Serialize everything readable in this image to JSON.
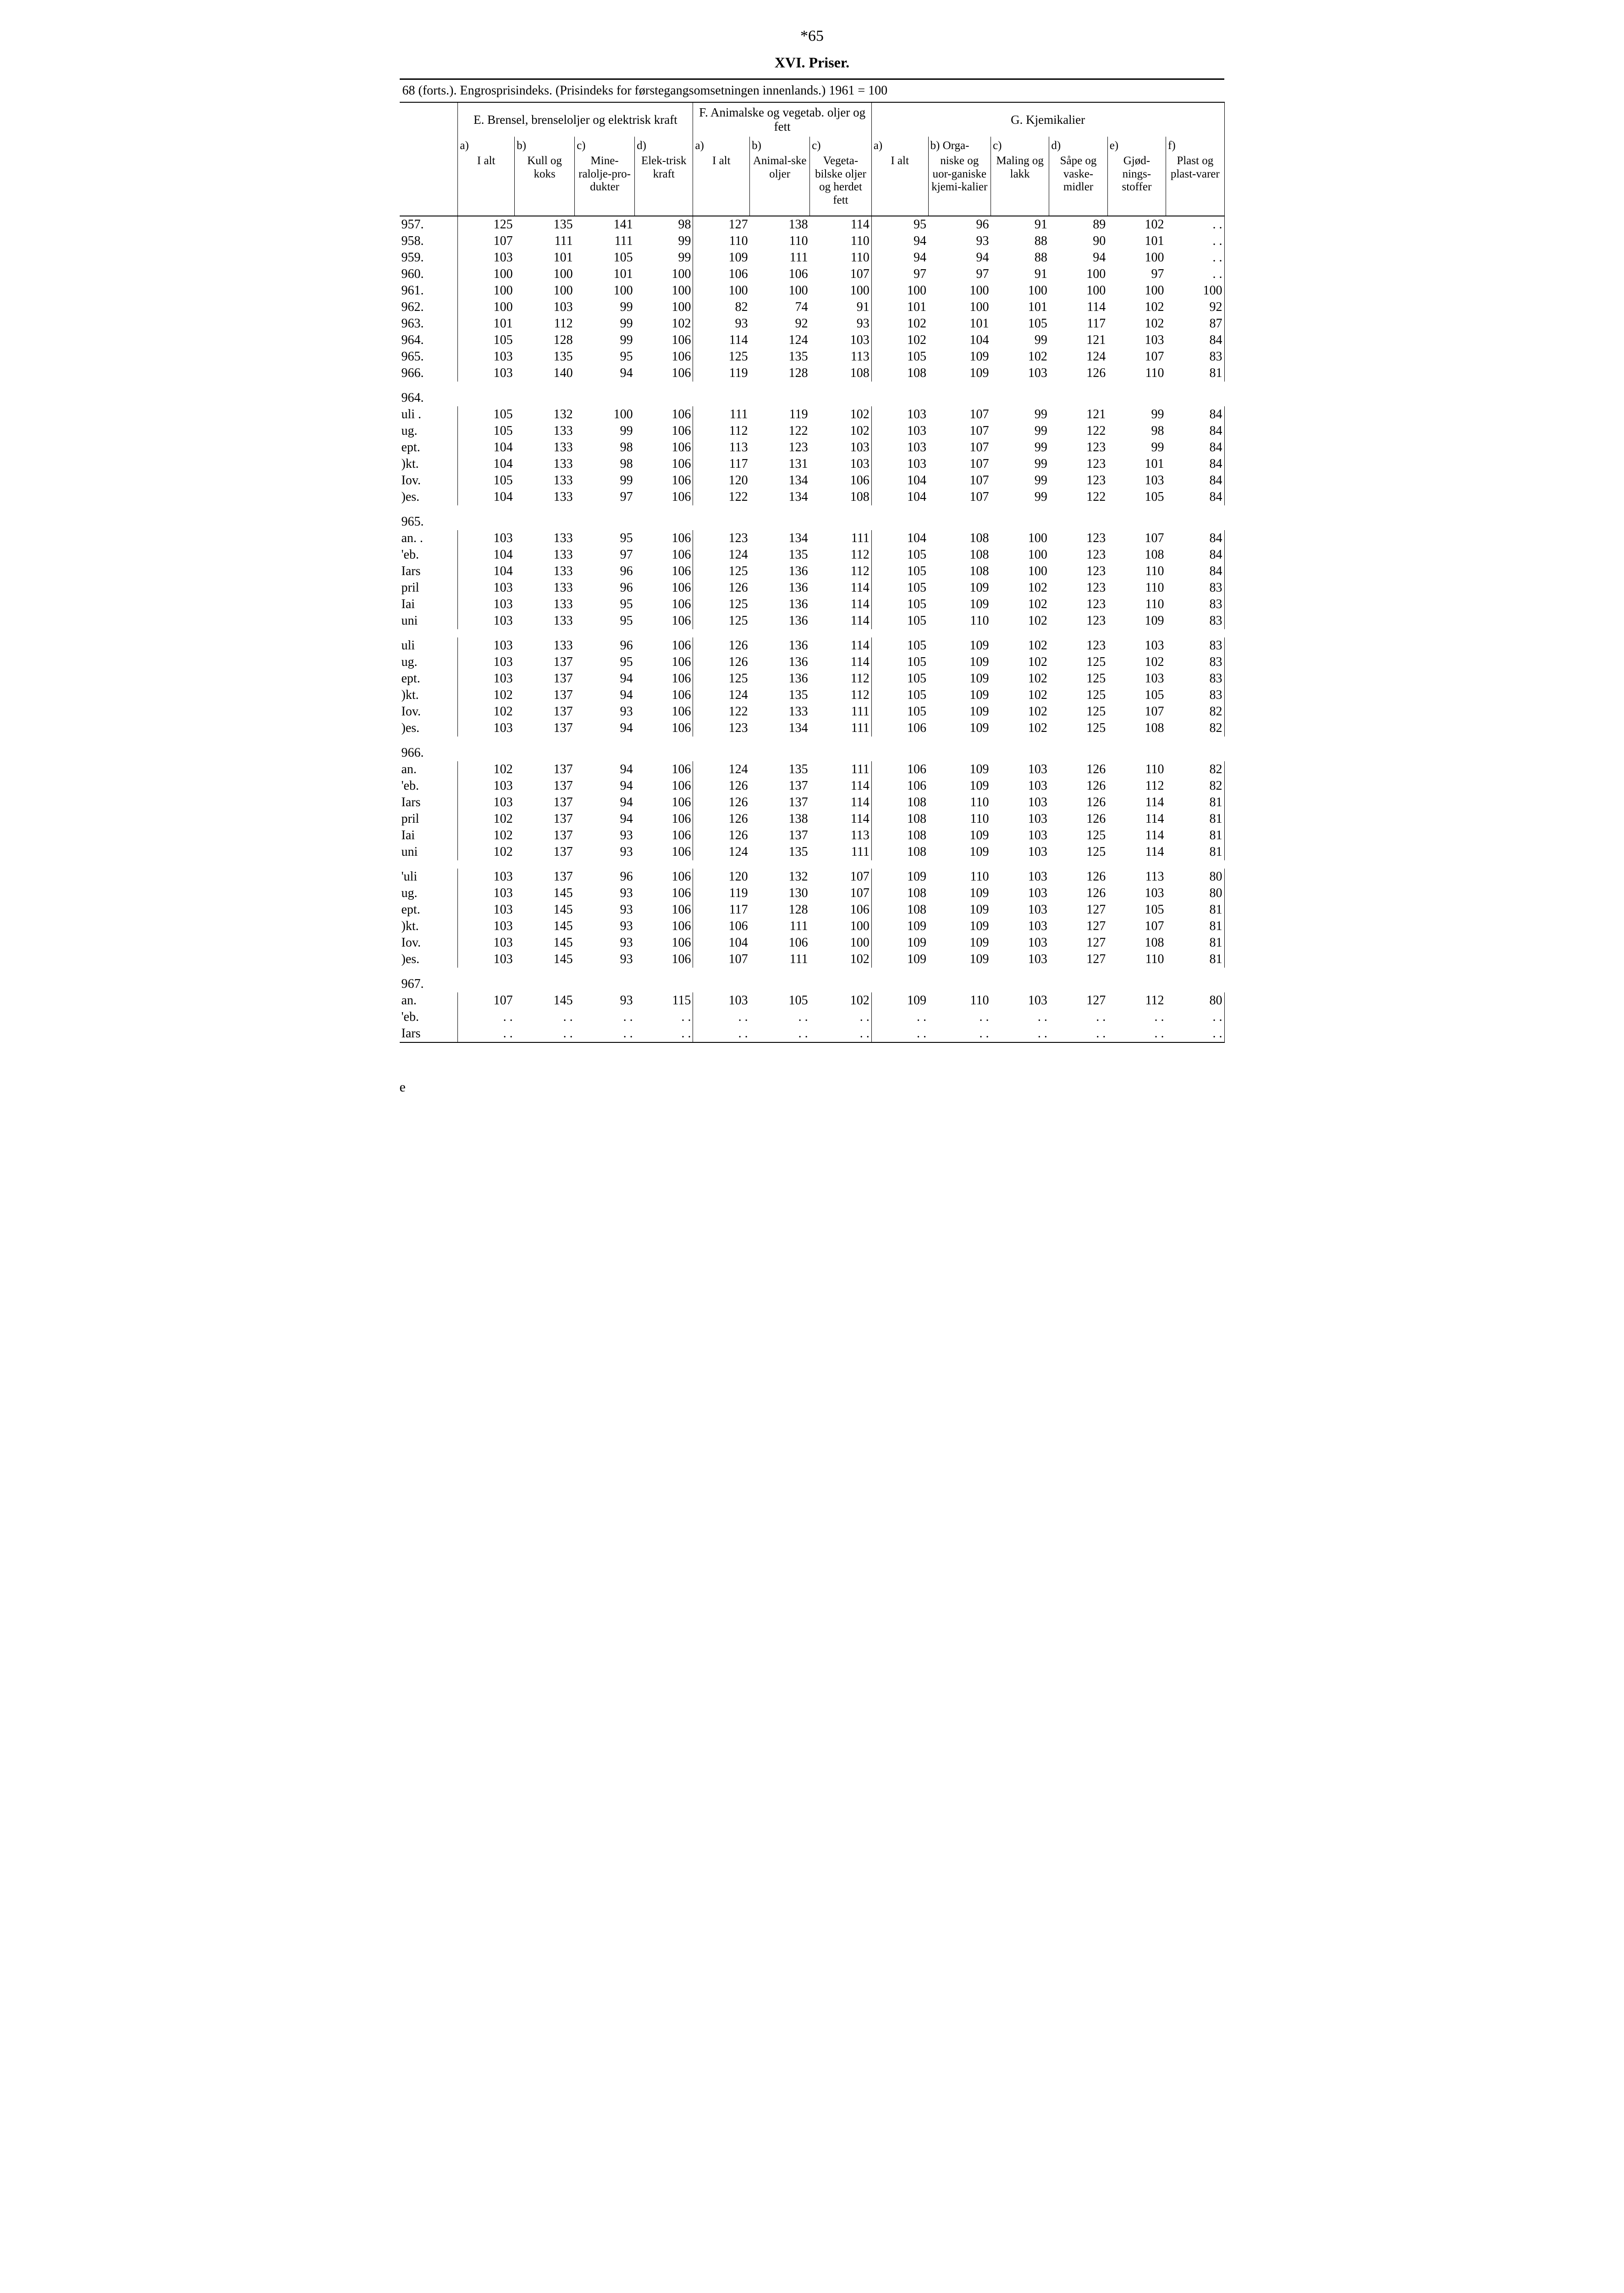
{
  "page_number": "*65",
  "title": "XVI. Priser.",
  "caption": "68 (forts.). Engrosprisindeks. (Prisindeks for førstegangsomsetningen innenlands.) 1961 = 100",
  "groups": [
    {
      "label": "E. Brensel, brenseloljer og elektrisk kraft",
      "span": 4
    },
    {
      "label": "F. Animalske og vegetab. oljer og fett",
      "span": 3
    },
    {
      "label": "G. Kjemikalier",
      "span": 6
    }
  ],
  "columns": [
    {
      "letter": "a)",
      "label": "I alt"
    },
    {
      "letter": "b)",
      "label": "Kull og koks"
    },
    {
      "letter": "c)",
      "label": "Mine-ralolje-pro-dukter"
    },
    {
      "letter": "d)",
      "label": "Elek-trisk kraft"
    },
    {
      "letter": "a)",
      "label": "I alt"
    },
    {
      "letter": "b)",
      "label": "Animal-ske oljer"
    },
    {
      "letter": "c)",
      "label": "Vegeta-bilske oljer og herdet fett"
    },
    {
      "letter": "a)",
      "label": "I alt"
    },
    {
      "letter": "b) Orga-",
      "label": "niske og uor-ganiske kjemi-kalier"
    },
    {
      "letter": "c)",
      "label": "Maling og lakk"
    },
    {
      "letter": "d)",
      "label": "Såpe og vaske-midler"
    },
    {
      "letter": "e)",
      "label": "Gjød-nings-stoffer"
    },
    {
      "letter": "f)",
      "label": "Plast og plast-varer"
    }
  ],
  "sections": [
    {
      "header": null,
      "rows": [
        {
          "label": "957.",
          "v": [
            "125",
            "135",
            "141",
            "98",
            "127",
            "138",
            "114",
            "95",
            "96",
            "91",
            "89",
            "102",
            ". ."
          ]
        },
        {
          "label": "958.",
          "v": [
            "107",
            "111",
            "111",
            "99",
            "110",
            "110",
            "110",
            "94",
            "93",
            "88",
            "90",
            "101",
            ". ."
          ]
        },
        {
          "label": "959.",
          "v": [
            "103",
            "101",
            "105",
            "99",
            "109",
            "111",
            "110",
            "94",
            "94",
            "88",
            "94",
            "100",
            ". ."
          ]
        },
        {
          "label": "960.",
          "v": [
            "100",
            "100",
            "101",
            "100",
            "106",
            "106",
            "107",
            "97",
            "97",
            "91",
            "100",
            "97",
            ". ."
          ]
        },
        {
          "label": "961.",
          "v": [
            "100",
            "100",
            "100",
            "100",
            "100",
            "100",
            "100",
            "100",
            "100",
            "100",
            "100",
            "100",
            "100"
          ]
        },
        {
          "label": "962.",
          "v": [
            "100",
            "103",
            "99",
            "100",
            "82",
            "74",
            "91",
            "101",
            "100",
            "101",
            "114",
            "102",
            "92"
          ]
        },
        {
          "label": "963.",
          "v": [
            "101",
            "112",
            "99",
            "102",
            "93",
            "92",
            "93",
            "102",
            "101",
            "105",
            "117",
            "102",
            "87"
          ]
        },
        {
          "label": "964.",
          "v": [
            "105",
            "128",
            "99",
            "106",
            "114",
            "124",
            "103",
            "102",
            "104",
            "99",
            "121",
            "103",
            "84"
          ]
        },
        {
          "label": "965.",
          "v": [
            "103",
            "135",
            "95",
            "106",
            "125",
            "135",
            "113",
            "105",
            "109",
            "102",
            "124",
            "107",
            "83"
          ]
        },
        {
          "label": "966.",
          "v": [
            "103",
            "140",
            "94",
            "106",
            "119",
            "128",
            "108",
            "108",
            "109",
            "103",
            "126",
            "110",
            "81"
          ]
        }
      ]
    },
    {
      "header": "964.",
      "rows": [
        {
          "label": "uli .",
          "v": [
            "105",
            "132",
            "100",
            "106",
            "111",
            "119",
            "102",
            "103",
            "107",
            "99",
            "121",
            "99",
            "84"
          ]
        },
        {
          "label": "ug.",
          "v": [
            "105",
            "133",
            "99",
            "106",
            "112",
            "122",
            "102",
            "103",
            "107",
            "99",
            "122",
            "98",
            "84"
          ]
        },
        {
          "label": "ept.",
          "v": [
            "104",
            "133",
            "98",
            "106",
            "113",
            "123",
            "103",
            "103",
            "107",
            "99",
            "123",
            "99",
            "84"
          ]
        },
        {
          "label": ")kt.",
          "v": [
            "104",
            "133",
            "98",
            "106",
            "117",
            "131",
            "103",
            "103",
            "107",
            "99",
            "123",
            "101",
            "84"
          ]
        },
        {
          "label": "Iov.",
          "v": [
            "105",
            "133",
            "99",
            "106",
            "120",
            "134",
            "106",
            "104",
            "107",
            "99",
            "123",
            "103",
            "84"
          ]
        },
        {
          "label": ")es.",
          "v": [
            "104",
            "133",
            "97",
            "106",
            "122",
            "134",
            "108",
            "104",
            "107",
            "99",
            "122",
            "105",
            "84"
          ]
        }
      ]
    },
    {
      "header": "965.",
      "rows": [
        {
          "label": "an. .",
          "v": [
            "103",
            "133",
            "95",
            "106",
            "123",
            "134",
            "111",
            "104",
            "108",
            "100",
            "123",
            "107",
            "84"
          ]
        },
        {
          "label": "'eb.",
          "v": [
            "104",
            "133",
            "97",
            "106",
            "124",
            "135",
            "112",
            "105",
            "108",
            "100",
            "123",
            "108",
            "84"
          ]
        },
        {
          "label": "Iars",
          "v": [
            "104",
            "133",
            "96",
            "106",
            "125",
            "136",
            "112",
            "105",
            "108",
            "100",
            "123",
            "110",
            "84"
          ]
        },
        {
          "label": "pril",
          "v": [
            "103",
            "133",
            "96",
            "106",
            "126",
            "136",
            "114",
            "105",
            "109",
            "102",
            "123",
            "110",
            "83"
          ]
        },
        {
          "label": "Iai",
          "v": [
            "103",
            "133",
            "95",
            "106",
            "125",
            "136",
            "114",
            "105",
            "109",
            "102",
            "123",
            "110",
            "83"
          ]
        },
        {
          "label": "uni",
          "v": [
            "103",
            "133",
            "95",
            "106",
            "125",
            "136",
            "114",
            "105",
            "110",
            "102",
            "123",
            "109",
            "83"
          ]
        }
      ]
    },
    {
      "header": null,
      "rows": [
        {
          "label": "uli",
          "v": [
            "103",
            "133",
            "96",
            "106",
            "126",
            "136",
            "114",
            "105",
            "109",
            "102",
            "123",
            "103",
            "83"
          ]
        },
        {
          "label": "ug.",
          "v": [
            "103",
            "137",
            "95",
            "106",
            "126",
            "136",
            "114",
            "105",
            "109",
            "102",
            "125",
            "102",
            "83"
          ]
        },
        {
          "label": "ept.",
          "v": [
            "103",
            "137",
            "94",
            "106",
            "125",
            "136",
            "112",
            "105",
            "109",
            "102",
            "125",
            "103",
            "83"
          ]
        },
        {
          "label": ")kt.",
          "v": [
            "102",
            "137",
            "94",
            "106",
            "124",
            "135",
            "112",
            "105",
            "109",
            "102",
            "125",
            "105",
            "83"
          ]
        },
        {
          "label": "Iov.",
          "v": [
            "102",
            "137",
            "93",
            "106",
            "122",
            "133",
            "111",
            "105",
            "109",
            "102",
            "125",
            "107",
            "82"
          ]
        },
        {
          "label": ")es.",
          "v": [
            "103",
            "137",
            "94",
            "106",
            "123",
            "134",
            "111",
            "106",
            "109",
            "102",
            "125",
            "108",
            "82"
          ]
        }
      ]
    },
    {
      "header": "966.",
      "rows": [
        {
          "label": "an.",
          "v": [
            "102",
            "137",
            "94",
            "106",
            "124",
            "135",
            "111",
            "106",
            "109",
            "103",
            "126",
            "110",
            "82"
          ]
        },
        {
          "label": "'eb.",
          "v": [
            "103",
            "137",
            "94",
            "106",
            "126",
            "137",
            "114",
            "106",
            "109",
            "103",
            "126",
            "112",
            "82"
          ]
        },
        {
          "label": "Iars",
          "v": [
            "103",
            "137",
            "94",
            "106",
            "126",
            "137",
            "114",
            "108",
            "110",
            "103",
            "126",
            "114",
            "81"
          ]
        },
        {
          "label": "pril",
          "v": [
            "102",
            "137",
            "94",
            "106",
            "126",
            "138",
            "114",
            "108",
            "110",
            "103",
            "126",
            "114",
            "81"
          ]
        },
        {
          "label": "Iai",
          "v": [
            "102",
            "137",
            "93",
            "106",
            "126",
            "137",
            "113",
            "108",
            "109",
            "103",
            "125",
            "114",
            "81"
          ]
        },
        {
          "label": "uni",
          "v": [
            "102",
            "137",
            "93",
            "106",
            "124",
            "135",
            "111",
            "108",
            "109",
            "103",
            "125",
            "114",
            "81"
          ]
        }
      ]
    },
    {
      "header": null,
      "rows": [
        {
          "label": "'uli",
          "v": [
            "103",
            "137",
            "96",
            "106",
            "120",
            "132",
            "107",
            "109",
            "110",
            "103",
            "126",
            "113",
            "80"
          ]
        },
        {
          "label": "ug.",
          "v": [
            "103",
            "145",
            "93",
            "106",
            "119",
            "130",
            "107",
            "108",
            "109",
            "103",
            "126",
            "103",
            "80"
          ]
        },
        {
          "label": "ept.",
          "v": [
            "103",
            "145",
            "93",
            "106",
            "117",
            "128",
            "106",
            "108",
            "109",
            "103",
            "127",
            "105",
            "81"
          ]
        },
        {
          "label": ")kt.",
          "v": [
            "103",
            "145",
            "93",
            "106",
            "106",
            "111",
            "100",
            "109",
            "109",
            "103",
            "127",
            "107",
            "81"
          ]
        },
        {
          "label": "Iov.",
          "v": [
            "103",
            "145",
            "93",
            "106",
            "104",
            "106",
            "100",
            "109",
            "109",
            "103",
            "127",
            "108",
            "81"
          ]
        },
        {
          "label": ")es.",
          "v": [
            "103",
            "145",
            "93",
            "106",
            "107",
            "111",
            "102",
            "109",
            "109",
            "103",
            "127",
            "110",
            "81"
          ]
        }
      ]
    },
    {
      "header": "967.",
      "rows": [
        {
          "label": "an.",
          "v": [
            "107",
            "145",
            "93",
            "115",
            "103",
            "105",
            "102",
            "109",
            "110",
            "103",
            "127",
            "112",
            "80"
          ]
        },
        {
          "label": "'eb.",
          "v": [
            ". .",
            ". .",
            ". .",
            ". .",
            ". .",
            ". .",
            ". .",
            ". .",
            ". .",
            ". .",
            ". .",
            ". .",
            ". ."
          ]
        },
        {
          "label": "Iars",
          "v": [
            ". .",
            ". .",
            ". .",
            ". .",
            ". .",
            ". .",
            ". .",
            ". .",
            ". .",
            ". .",
            ". .",
            ". .",
            ". ."
          ]
        }
      ]
    }
  ],
  "footer": "e"
}
